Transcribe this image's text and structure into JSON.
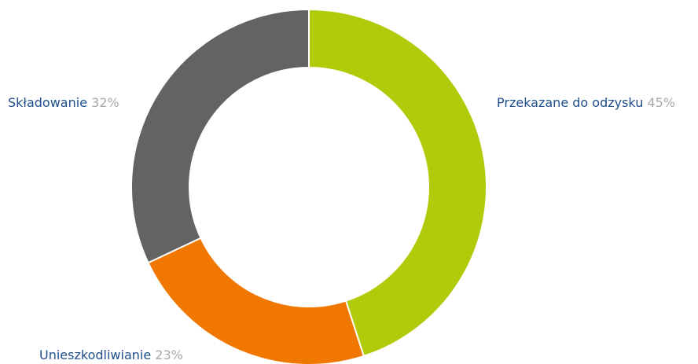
{
  "chart_data": {
    "type": "pie",
    "categories": [
      "Przekazane do odzysku",
      "Unieszkodliwianie",
      "Składowanie"
    ],
    "values": [
      45,
      23,
      32
    ],
    "value_labels": [
      "45%",
      "23%",
      "32%"
    ],
    "colors": [
      "#b1cb0b",
      "#f07800",
      "#636363"
    ]
  }
}
